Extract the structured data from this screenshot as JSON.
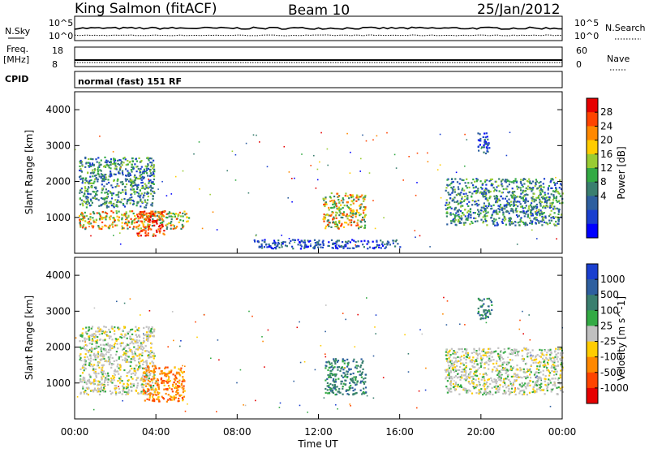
{
  "header": {
    "station": "King Salmon (fitACF)",
    "beam": "Beam 10",
    "date": "25/Jan/2012"
  },
  "top_panels": {
    "nsky_label": "N.Sky",
    "nsky_hi": "10^5",
    "nsky_lo": "10^0",
    "nsearch_label": "N.Search",
    "nsearch_hi": "10^5",
    "nsearch_lo": "10^0",
    "freq_label": "Freq.",
    "freq_unit": "[MHz]",
    "freq_hi": "18",
    "freq_lo": "8",
    "nave_label": "Nave",
    "nave_hi": "60",
    "nave_lo": "0",
    "cpid_label": "CPID",
    "cpid_text": "normal (fast) 151 RF"
  },
  "chart_data": [
    {
      "type": "heatmap",
      "panel": "power",
      "ylabel": "Slant Range [km]",
      "xlabel": "",
      "colorbar_label": "Power [dB]",
      "colorbar_ticks": [
        "28",
        "24",
        "20",
        "16",
        "12",
        "8",
        "4"
      ],
      "colorbar_colors": [
        "#e60000",
        "#ff4400",
        "#ff8800",
        "#ffcc00",
        "#99cc33",
        "#33aa44",
        "#3a7f6f",
        "#2e5f9f",
        "#1a3fcf",
        "#0000ff"
      ],
      "ylim": [
        0,
        4500
      ],
      "yticks": [
        "4000",
        "3000",
        "2000",
        "1000"
      ],
      "xlim_hours": [
        0,
        24
      ],
      "features": [
        {
          "t0": 0.2,
          "t1": 5.6,
          "r0": 700,
          "r1": 1200,
          "intensity": "high"
        },
        {
          "t0": 3.0,
          "t1": 4.4,
          "r0": 500,
          "r1": 1200,
          "intensity": "very-high"
        },
        {
          "t0": 0.2,
          "t1": 3.9,
          "r0": 1300,
          "r1": 2700,
          "intensity": "medium"
        },
        {
          "t0": 12.2,
          "t1": 14.3,
          "r0": 700,
          "r1": 1700,
          "intensity": "high"
        },
        {
          "t0": 18.2,
          "t1": 24.0,
          "r0": 800,
          "r1": 2100,
          "intensity": "medium"
        },
        {
          "t0": 19.8,
          "t1": 20.4,
          "r0": 2800,
          "r1": 3400,
          "intensity": "low"
        },
        {
          "t0": 8.8,
          "t1": 16.0,
          "r0": 150,
          "r1": 400,
          "intensity": "low"
        }
      ]
    },
    {
      "type": "heatmap",
      "panel": "velocity",
      "ylabel": "Slant Range [km]",
      "xlabel": "Time UT",
      "colorbar_label": "Velocity [m s^-1]",
      "colorbar_ticks": [
        "1000",
        "500",
        "100",
        "25",
        "-25",
        "-100",
        "-500",
        "-1000"
      ],
      "colorbar_colors": [
        "#1a3fcf",
        "#2e5f9f",
        "#3a7f6f",
        "#33aa44",
        "#c0c0c0",
        "#ffcc00",
        "#ff8800",
        "#ff4400",
        "#e60000"
      ],
      "ylim": [
        0,
        4500
      ],
      "yticks": [
        "4000",
        "3000",
        "2000",
        "1000"
      ],
      "xticks": [
        "00:00",
        "04:00",
        "08:00",
        "12:00",
        "16:00",
        "20:00",
        "00:00"
      ],
      "xlim_hours": [
        0,
        24
      ],
      "features": [
        {
          "t0": 0.2,
          "t1": 3.9,
          "r0": 700,
          "r1": 2600,
          "color": "ground-scatter"
        },
        {
          "t0": 3.3,
          "t1": 5.4,
          "r0": 500,
          "r1": 1500,
          "color": "orange"
        },
        {
          "t0": 12.3,
          "t1": 14.3,
          "r0": 700,
          "r1": 1700,
          "color": "green"
        },
        {
          "t0": 18.2,
          "t1": 24.0,
          "r0": 700,
          "r1": 2000,
          "color": "ground-scatter"
        },
        {
          "t0": 19.8,
          "t1": 20.5,
          "r0": 2800,
          "r1": 3400,
          "color": "green"
        }
      ]
    }
  ]
}
